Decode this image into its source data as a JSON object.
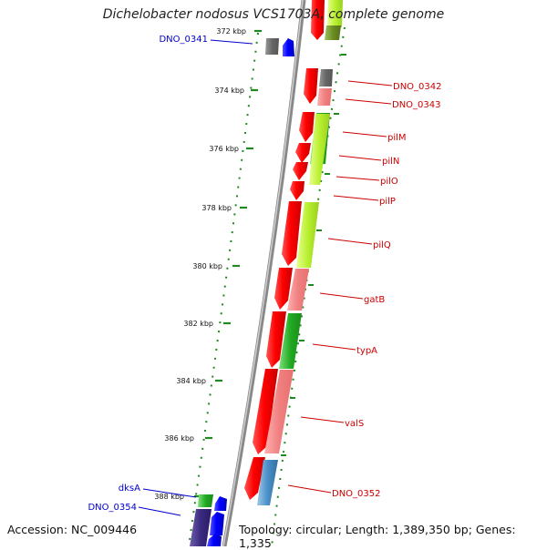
{
  "title": "Dichelobacter nodosus VCS1703A, complete genome",
  "footer": {
    "accession": "Accession: NC_009446",
    "topology": "Topology: circular; Length: 1,389,350 bp; Genes: 1,335"
  },
  "scale_labels": [
    "372 kbp",
    "374 kbp",
    "376 kbp",
    "378 kbp",
    "380 kbp",
    "382 kbp",
    "384 kbp",
    "386 kbp",
    "388 kbp"
  ],
  "genes_right": [
    {
      "label": "DNO_0342",
      "color": "#cc0000"
    },
    {
      "label": "DNO_0343",
      "color": "#cc0000"
    },
    {
      "label": "pilM",
      "color": "#cc0000"
    },
    {
      "label": "pilN",
      "color": "#cc0000"
    },
    {
      "label": "pilO",
      "color": "#cc0000"
    },
    {
      "label": "pilP",
      "color": "#cc0000"
    },
    {
      "label": "pilQ",
      "color": "#cc0000"
    },
    {
      "label": "gatB",
      "color": "#cc0000"
    },
    {
      "label": "typA",
      "color": "#cc0000"
    },
    {
      "label": "valS",
      "color": "#cc0000"
    },
    {
      "label": "DNO_0352",
      "color": "#cc0000"
    }
  ],
  "genes_left": [
    {
      "label": "DNO_0341",
      "color": "#0000cc"
    },
    {
      "label": "dksA",
      "color": "#0000cc"
    },
    {
      "label": "DNO_0354",
      "color": "#0000cc"
    }
  ]
}
